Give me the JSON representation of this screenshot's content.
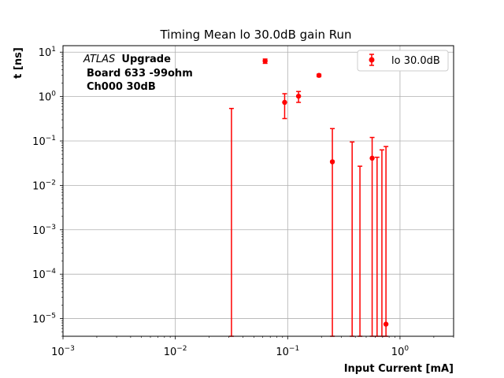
{
  "chart_data": {
    "type": "scatter",
    "title": "Timing Mean lo 30.0dB gain Run",
    "xlabel": "Input Current [mA]",
    "ylabel": "t [ns]",
    "xscale": "log",
    "yscale": "log",
    "xlim": [
      0.001,
      3
    ],
    "ylim": [
      4e-06,
      14
    ],
    "grid": true,
    "legend_placement": "top-right",
    "x_ticks": [
      {
        "value": 0.001,
        "base": "10",
        "exp": "−3"
      },
      {
        "value": 0.01,
        "base": "10",
        "exp": "−2"
      },
      {
        "value": 0.1,
        "base": "10",
        "exp": "−1"
      },
      {
        "value": 1,
        "base": "10",
        "exp": "0"
      }
    ],
    "y_ticks": [
      {
        "value": 1e-05,
        "base": "10",
        "exp": "−5"
      },
      {
        "value": 0.0001,
        "base": "10",
        "exp": "−4"
      },
      {
        "value": 0.001,
        "base": "10",
        "exp": "−3"
      },
      {
        "value": 0.01,
        "base": "10",
        "exp": "−2"
      },
      {
        "value": 0.1,
        "base": "10",
        "exp": "−1"
      },
      {
        "value": 1,
        "base": "10",
        "exp": "0"
      },
      {
        "value": 10,
        "base": "10",
        "exp": "1"
      }
    ],
    "annotation": {
      "atlas": "ATLAS",
      "upgrade": "Upgrade",
      "line2": "Board 633 -99ohm",
      "line3": "Ch000 30dB"
    },
    "series": [
      {
        "name": "lo 30.0dB",
        "color": "#ff0000",
        "points": [
          {
            "x": 0.0316,
            "y": null,
            "ylo": 4e-06,
            "yhi": 0.54
          },
          {
            "x": 0.063,
            "y": 6.3,
            "ylo": 5.6,
            "yhi": 7.0
          },
          {
            "x": 0.094,
            "y": 0.74,
            "ylo": 0.32,
            "yhi": 1.16
          },
          {
            "x": 0.125,
            "y": 1.02,
            "ylo": 0.74,
            "yhi": 1.3
          },
          {
            "x": 0.19,
            "y": 3.0,
            "ylo": 2.8,
            "yhi": 3.2
          },
          {
            "x": 0.25,
            "y": 0.034,
            "ylo": 4e-06,
            "yhi": 0.19
          },
          {
            "x": 0.375,
            "y": null,
            "ylo": 4e-06,
            "yhi": 0.095
          },
          {
            "x": 0.44,
            "y": null,
            "ylo": 4e-06,
            "yhi": 0.027
          },
          {
            "x": 0.565,
            "y": 0.041,
            "ylo": 4e-06,
            "yhi": 0.12
          },
          {
            "x": 0.625,
            "y": null,
            "ylo": 4e-06,
            "yhi": 0.043
          },
          {
            "x": 0.69,
            "y": null,
            "ylo": 4e-06,
            "yhi": 0.063
          },
          {
            "x": 0.75,
            "y": 7.5e-06,
            "ylo": 4e-06,
            "yhi": 0.075
          }
        ]
      }
    ]
  }
}
